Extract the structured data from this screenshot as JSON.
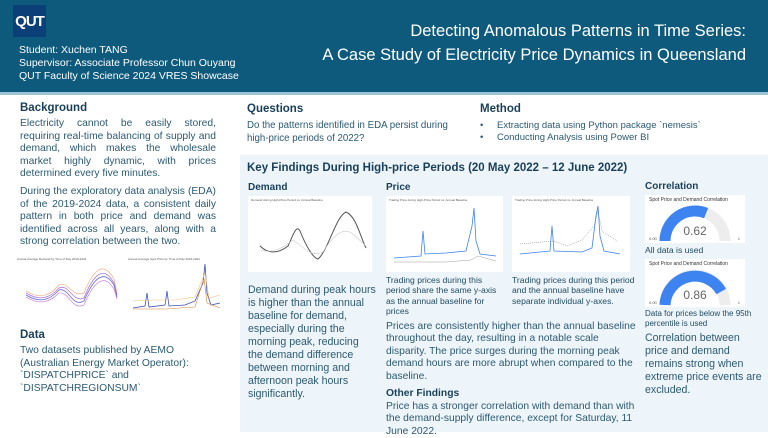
{
  "header": {
    "logo": "QUT",
    "student": "Student: Xuchen TANG",
    "supervisor": "Supervisor: Associate Professor Chun Ouyang",
    "event": "QUT Faculty of Science 2024 VRES Showcase",
    "title_line1": "Detecting Anomalous Patterns in Time Series:",
    "title_line2": "A Case Study of Electricity Price Dynamics in Queensland"
  },
  "background": {
    "heading": "Background",
    "p1": "Electricity cannot be easily stored, requiring real-time balancing of supply and demand, which makes the wholesale market highly dynamic, with prices determined every five minutes.",
    "p2": "During the exploratory data analysis (EDA) of the 2019-2024 data, a consistent daily pattern in both price and demand was identified across all years, along with a strong correlation between the two.",
    "chart1_title": "Annual Average Demand by Time of Day 2019-2024",
    "chart2_title": "Annual Average Spot Price by Time of Day 2019-2024"
  },
  "data": {
    "heading": "Data",
    "text": "Two datasets published by AEMO (Australian Energy Market Operator): `DISPATCHPRICE` and `DISPATCHREGIONSUM`"
  },
  "questions": {
    "heading": "Questions",
    "text": "Do the patterns identified in EDA persist during high-price periods of 2022?"
  },
  "method": {
    "heading": "Method",
    "items": [
      "Extracting data using Python package  `nemesis`",
      "Conducting Analysis using Power BI"
    ]
  },
  "key_findings": {
    "heading": "Key Findings During High-price Periods (20 May 2022 – 12 June 2022)",
    "demand": {
      "heading": "Demand",
      "chart_title": "Demand during High-Price Period vs. Annual Baseline",
      "text": "Demand during peak hours is higher than the annual baseline for demand, especially during the morning peak, reducing the demand difference between morning and afternoon peak hours significantly."
    },
    "price": {
      "heading": "Price",
      "chart_title": "Trading Price during High-Price Period vs. Annual Baseline",
      "caption1": "Trading prices during this period share the same y-axis as the annual baseline for prices",
      "caption2": "Trading prices during this period and the annual baseline have separate individual y-axes.",
      "text": "Prices are consistently higher than the annual baseline throughout the day, resulting in a notable scale disparity. The price surges during the morning peak demand hours are more abrupt when compared to the baseline."
    },
    "other": {
      "heading": "Other Findings",
      "text": "Price has a stronger correlation with demand than with the demand-supply difference, except for Saturday, 11 June 2022."
    },
    "correlation": {
      "heading": "Correlation",
      "gauge_title": "Spot Price and Demand Correlation",
      "gauge_min": "0.00",
      "gauge_max": "1",
      "gauge1_value": "0.62",
      "gauge1_caption": "All data is used",
      "gauge2_value": "0.86",
      "gauge2_caption": "Data for prices below the 95th percentile is used",
      "text": "Correlation between price and demand remains strong when extreme price events are excluded."
    }
  },
  "colors": {
    "header": "#0d5a7d",
    "panel": "#eef5fa",
    "gauge_fill": "#3d84f0",
    "gauge_track": "#ededed"
  }
}
